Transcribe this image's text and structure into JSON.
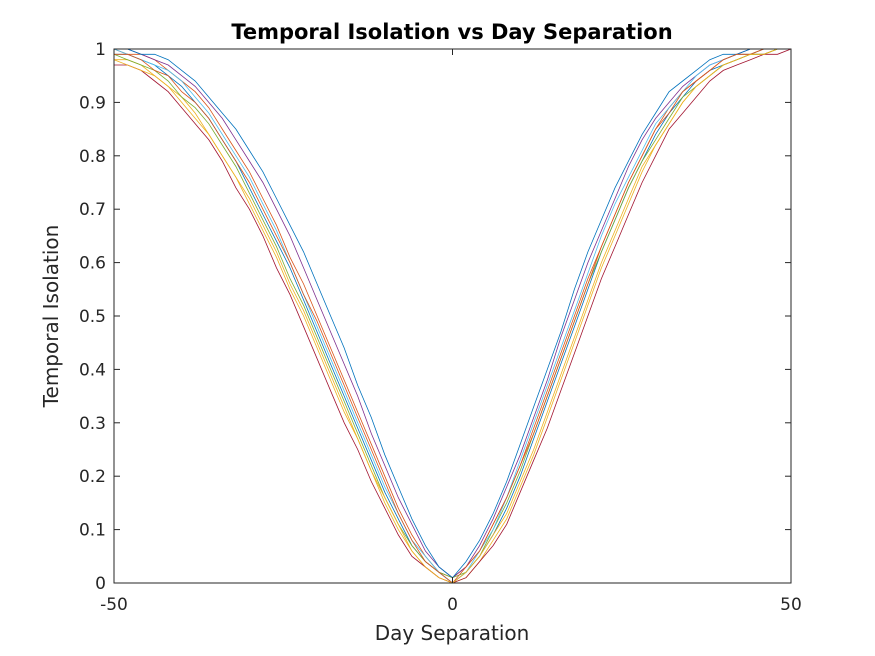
{
  "chart_data": {
    "type": "line",
    "title": "Temporal Isolation vs Day Separation",
    "xlabel": "Day Separation",
    "ylabel": "Temporal Isolation",
    "xlim": [
      -50,
      50
    ],
    "ylim": [
      0,
      1
    ],
    "x_ticks": [
      "-50",
      "0",
      "50"
    ],
    "y_ticks": [
      "0",
      "0.1",
      "0.2",
      "0.3",
      "0.4",
      "0.5",
      "0.6",
      "0.7",
      "0.8",
      "0.9",
      "1"
    ],
    "grid": false,
    "legend": "none",
    "series_colors": [
      "#0072BD",
      "#D95319",
      "#EDB120",
      "#7E2F8E",
      "#77AC30",
      "#4DBEEE",
      "#A2142F"
    ],
    "x": [
      -50,
      -48,
      -46,
      -44,
      -42,
      -40,
      -38,
      -36,
      -34,
      -32,
      -30,
      -28,
      -26,
      -24,
      -22,
      -20,
      -18,
      -16,
      -14,
      -12,
      -10,
      -8,
      -6,
      -4,
      -2,
      0,
      2,
      4,
      6,
      8,
      10,
      12,
      14,
      16,
      18,
      20,
      22,
      24,
      26,
      28,
      30,
      32,
      34,
      36,
      38,
      40,
      42,
      44,
      46,
      48,
      50
    ],
    "series": [
      {
        "values": [
          0.99,
          0.99,
          0.98,
          0.97,
          0.95,
          0.93,
          0.9,
          0.87,
          0.83,
          0.79,
          0.74,
          0.69,
          0.64,
          0.59,
          0.53,
          0.47,
          0.41,
          0.35,
          0.29,
          0.23,
          0.17,
          0.12,
          0.07,
          0.04,
          0.02,
          0.0,
          0.02,
          0.05,
          0.09,
          0.14,
          0.2,
          0.27,
          0.34,
          0.41,
          0.48,
          0.55,
          0.62,
          0.68,
          0.74,
          0.79,
          0.84,
          0.88,
          0.91,
          0.94,
          0.96,
          0.97,
          0.98,
          0.99,
          0.99,
          1.0,
          1.0
        ]
      },
      {
        "values": [
          1.0,
          0.99,
          0.99,
          0.98,
          0.96,
          0.94,
          0.92,
          0.89,
          0.85,
          0.81,
          0.77,
          0.72,
          0.67,
          0.61,
          0.56,
          0.5,
          0.44,
          0.38,
          0.32,
          0.26,
          0.2,
          0.14,
          0.09,
          0.05,
          0.02,
          0.01,
          0.03,
          0.06,
          0.11,
          0.16,
          0.22,
          0.29,
          0.36,
          0.43,
          0.5,
          0.57,
          0.63,
          0.69,
          0.75,
          0.8,
          0.85,
          0.89,
          0.92,
          0.94,
          0.96,
          0.98,
          0.99,
          0.99,
          1.0,
          1.0,
          1.0
        ]
      },
      {
        "values": [
          0.98,
          0.98,
          0.97,
          0.95,
          0.93,
          0.91,
          0.88,
          0.84,
          0.8,
          0.76,
          0.71,
          0.66,
          0.61,
          0.55,
          0.5,
          0.44,
          0.38,
          0.32,
          0.27,
          0.21,
          0.15,
          0.1,
          0.06,
          0.03,
          0.01,
          0.0,
          0.01,
          0.04,
          0.08,
          0.12,
          0.18,
          0.24,
          0.31,
          0.38,
          0.45,
          0.52,
          0.59,
          0.65,
          0.71,
          0.77,
          0.82,
          0.86,
          0.9,
          0.93,
          0.95,
          0.97,
          0.98,
          0.99,
          0.99,
          1.0,
          1.0
        ]
      },
      {
        "values": [
          1.0,
          1.0,
          0.99,
          0.98,
          0.97,
          0.95,
          0.93,
          0.9,
          0.87,
          0.83,
          0.79,
          0.75,
          0.7,
          0.65,
          0.59,
          0.53,
          0.47,
          0.41,
          0.35,
          0.28,
          0.22,
          0.16,
          0.11,
          0.06,
          0.03,
          0.01,
          0.03,
          0.07,
          0.12,
          0.18,
          0.24,
          0.31,
          0.38,
          0.46,
          0.53,
          0.6,
          0.66,
          0.72,
          0.78,
          0.83,
          0.87,
          0.9,
          0.93,
          0.95,
          0.97,
          0.98,
          0.99,
          1.0,
          1.0,
          1.0,
          1.0
        ]
      },
      {
        "values": [
          0.99,
          0.98,
          0.97,
          0.96,
          0.94,
          0.91,
          0.89,
          0.86,
          0.82,
          0.78,
          0.73,
          0.68,
          0.63,
          0.57,
          0.52,
          0.46,
          0.4,
          0.34,
          0.28,
          0.22,
          0.16,
          0.11,
          0.07,
          0.04,
          0.02,
          0.01,
          0.02,
          0.05,
          0.1,
          0.15,
          0.21,
          0.28,
          0.35,
          0.42,
          0.49,
          0.56,
          0.62,
          0.68,
          0.74,
          0.79,
          0.83,
          0.87,
          0.91,
          0.93,
          0.95,
          0.97,
          0.98,
          0.99,
          0.99,
          1.0,
          1.0
        ]
      },
      {
        "values": [
          1.0,
          0.99,
          0.98,
          0.97,
          0.96,
          0.94,
          0.91,
          0.88,
          0.84,
          0.8,
          0.76,
          0.71,
          0.66,
          0.6,
          0.54,
          0.48,
          0.42,
          0.36,
          0.3,
          0.24,
          0.18,
          0.13,
          0.08,
          0.05,
          0.02,
          0.0,
          0.02,
          0.06,
          0.1,
          0.16,
          0.23,
          0.3,
          0.37,
          0.44,
          0.51,
          0.58,
          0.65,
          0.71,
          0.76,
          0.81,
          0.86,
          0.89,
          0.92,
          0.95,
          0.97,
          0.98,
          0.99,
          0.99,
          1.0,
          1.0,
          1.0
        ]
      },
      {
        "values": [
          0.97,
          0.97,
          0.96,
          0.94,
          0.92,
          0.89,
          0.86,
          0.83,
          0.79,
          0.74,
          0.7,
          0.65,
          0.59,
          0.54,
          0.48,
          0.42,
          0.36,
          0.3,
          0.25,
          0.19,
          0.14,
          0.09,
          0.05,
          0.03,
          0.01,
          0.0,
          0.01,
          0.04,
          0.07,
          0.11,
          0.17,
          0.23,
          0.29,
          0.36,
          0.43,
          0.5,
          0.57,
          0.63,
          0.69,
          0.75,
          0.8,
          0.85,
          0.88,
          0.91,
          0.94,
          0.96,
          0.97,
          0.98,
          0.99,
          0.99,
          1.0
        ]
      },
      {
        "values": [
          1.0,
          1.0,
          0.99,
          0.99,
          0.98,
          0.96,
          0.94,
          0.91,
          0.88,
          0.85,
          0.81,
          0.77,
          0.72,
          0.67,
          0.62,
          0.56,
          0.5,
          0.44,
          0.37,
          0.31,
          0.24,
          0.18,
          0.12,
          0.07,
          0.03,
          0.01,
          0.04,
          0.08,
          0.13,
          0.19,
          0.26,
          0.33,
          0.4,
          0.47,
          0.55,
          0.62,
          0.68,
          0.74,
          0.79,
          0.84,
          0.88,
          0.92,
          0.94,
          0.96,
          0.98,
          0.99,
          0.99,
          1.0,
          1.0,
          1.0,
          1.0
        ]
      },
      {
        "values": [
          0.99,
          0.99,
          0.98,
          0.96,
          0.95,
          0.92,
          0.9,
          0.87,
          0.83,
          0.79,
          0.75,
          0.7,
          0.65,
          0.6,
          0.54,
          0.49,
          0.43,
          0.37,
          0.31,
          0.25,
          0.19,
          0.13,
          0.08,
          0.04,
          0.02,
          0.0,
          0.03,
          0.06,
          0.11,
          0.16,
          0.22,
          0.28,
          0.35,
          0.42,
          0.49,
          0.56,
          0.63,
          0.69,
          0.75,
          0.8,
          0.85,
          0.88,
          0.92,
          0.94,
          0.96,
          0.98,
          0.99,
          0.99,
          1.0,
          1.0,
          1.0
        ]
      },
      {
        "values": [
          0.98,
          0.97,
          0.96,
          0.95,
          0.93,
          0.9,
          0.87,
          0.84,
          0.8,
          0.76,
          0.72,
          0.67,
          0.62,
          0.56,
          0.51,
          0.45,
          0.39,
          0.33,
          0.27,
          0.21,
          0.16,
          0.11,
          0.06,
          0.03,
          0.01,
          0.0,
          0.02,
          0.05,
          0.09,
          0.13,
          0.19,
          0.25,
          0.32,
          0.39,
          0.46,
          0.53,
          0.6,
          0.66,
          0.72,
          0.78,
          0.82,
          0.86,
          0.9,
          0.93,
          0.95,
          0.97,
          0.98,
          0.99,
          0.99,
          1.0,
          1.0
        ]
      }
    ]
  }
}
